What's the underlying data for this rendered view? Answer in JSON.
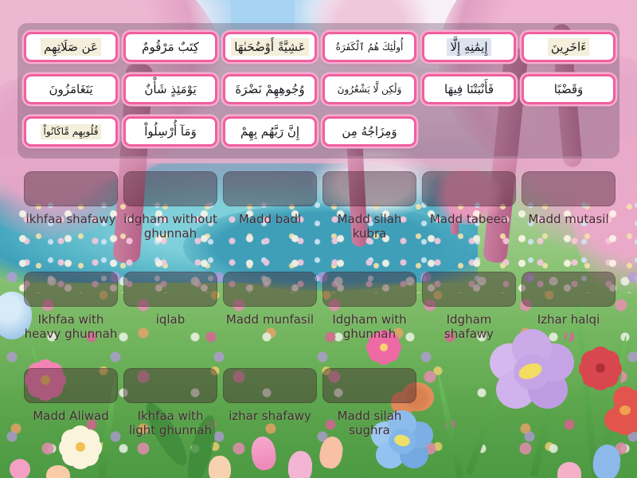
{
  "activity": {
    "type": "match-up",
    "theme": "spring meadow"
  },
  "cards": [
    {
      "text": "عَن صَلَاتِهِم",
      "highlight": "cream"
    },
    {
      "text": "كِتَبٌ مَرْقُومٌ",
      "highlight": "none"
    },
    {
      "text": "عَشِيَّةً أَوْضُحَىٰهَا",
      "highlight": "cream"
    },
    {
      "text": "أُولَٰئِكَ هُمُ ٱلْكَفَرَةُ",
      "highlight": "none"
    },
    {
      "text": "إِيمَٰنِهِ إِلَّا",
      "highlight": "blue"
    },
    {
      "text": "ءَاخَرِينَ",
      "highlight": "cream"
    },
    {
      "text": "يَتَغَامَزُونَ",
      "highlight": "none"
    },
    {
      "text": "يَوْمَئِذٍ شَأْنٌ",
      "highlight": "none"
    },
    {
      "text": "وُجُوهِهِمْ نَضْرَةَ",
      "highlight": "none"
    },
    {
      "text": "وَلَٰكِن لَّا يَشْعُرُونَ",
      "highlight": "none"
    },
    {
      "text": "فَأَنْبَتْنَا فِيهَا",
      "highlight": "none"
    },
    {
      "text": "وَقَضْبًا",
      "highlight": "none"
    },
    {
      "text": "قُلُوبِهِم مَّاكَانُواْ",
      "highlight": "cream"
    },
    {
      "text": "وَمَآ أُرْسِلُواْ",
      "highlight": "none"
    },
    {
      "text": "إِنَّ رَبَّهُم بِهِمْ",
      "highlight": "none"
    },
    {
      "text": "وَمِزَاجُهُ مِن",
      "highlight": "none"
    }
  ],
  "slots": [
    {
      "label": "ikhfaa shafawy"
    },
    {
      "label": "idgham without ghunnah"
    },
    {
      "label": "Madd badl"
    },
    {
      "label": "Madd silah kubra"
    },
    {
      "label": "Madd tabeea"
    },
    {
      "label": "Madd mutasil"
    },
    {
      "label": "Ikhfaa with heavy ghunnah"
    },
    {
      "label": "iqlab"
    },
    {
      "label": "Madd munfasil"
    },
    {
      "label": "Idgham with ghunnah"
    },
    {
      "label": "Idgham shafawy"
    },
    {
      "label": "Izhar halqi"
    },
    {
      "label": "Madd Aliwad"
    },
    {
      "label": "Ikhfaa with light ghunnah"
    },
    {
      "label": "izhar shafawy"
    },
    {
      "label": "Madd silah sughra"
    }
  ],
  "colors": {
    "card_border": "#f0609f",
    "card_border_glow": "#f7aed0",
    "card_background": "#ffffff",
    "card_highlight_cream": "#f4eeda",
    "card_highlight_blue": "#dde3ee",
    "panel_overlay": "rgba(100,80,100,0.34)",
    "slot_overlay": "rgba(66,32,46,0.42)",
    "label_text": "#462b35"
  }
}
